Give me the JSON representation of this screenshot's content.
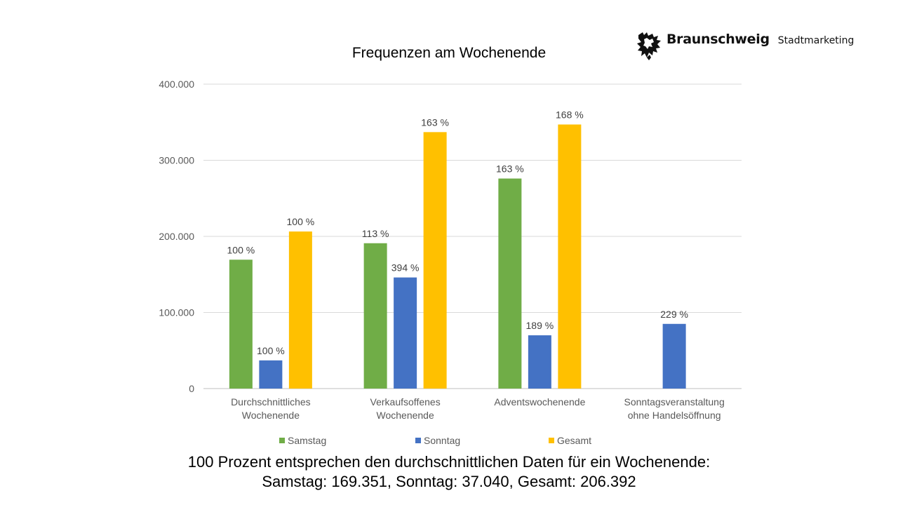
{
  "logo": {
    "brand": "Braunschweig",
    "subtitle": "Stadtmarketing",
    "icon": "lion-icon"
  },
  "chart_data": {
    "type": "bar",
    "title": "Frequenzen am Wochenende",
    "xlabel": "",
    "ylabel": "",
    "ylim": [
      0,
      400000
    ],
    "yticks": [
      0,
      100000,
      200000,
      300000,
      400000
    ],
    "ytick_labels": [
      "0",
      "100.000",
      "200.000",
      "300.000",
      "400.000"
    ],
    "grid": true,
    "legend_position": "bottom",
    "categories": [
      [
        "Durchschnittliches",
        "Wochenende"
      ],
      [
        "Verkaufsoffenes",
        "Wochenende"
      ],
      [
        "Adventswochenende"
      ],
      [
        "Sonntagsveranstaltung",
        "ohne Handelsöffnung"
      ]
    ],
    "series": [
      {
        "name": "Samstag",
        "color": "#70ad47",
        "values": [
          169351,
          191000,
          276000,
          null
        ],
        "labels": [
          "100 %",
          "113 %",
          "163 %",
          null
        ]
      },
      {
        "name": "Sonntag",
        "color": "#4472c4",
        "values": [
          37040,
          146000,
          70000,
          85000
        ],
        "labels": [
          "100 %",
          "394 %",
          "189 %",
          "229 %"
        ]
      },
      {
        "name": "Gesamt",
        "color": "#ffc000",
        "values": [
          206392,
          337000,
          347000,
          null
        ],
        "labels": [
          "100 %",
          "163 %",
          "168 %",
          null
        ]
      }
    ]
  },
  "footnote": {
    "line1": "100 Prozent entsprechen den durchschnittlichen Daten für ein Wochenende:",
    "line2": "Samstag: 169.351, Sonntag: 37.040, Gesamt: 206.392"
  }
}
